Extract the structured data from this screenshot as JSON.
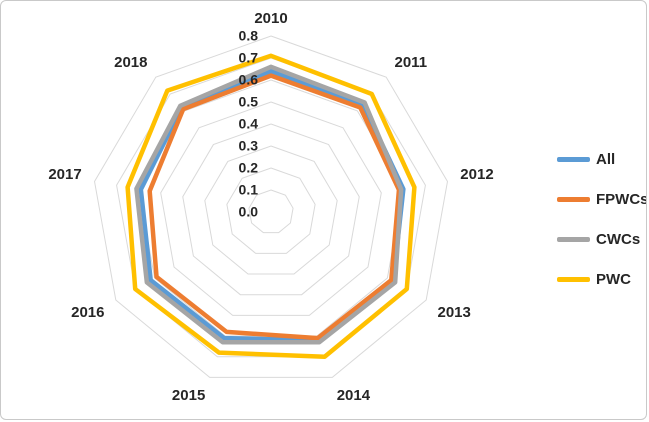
{
  "frame": {
    "background": "#FFFFFF",
    "border_color": "#C9C9C9",
    "gridline_color": "#D9D9D9",
    "text_color": "#262626"
  },
  "chart_data": {
    "type": "radar",
    "title": "",
    "categories": [
      "2010",
      "2011",
      "2012",
      "2013",
      "2014",
      "2015",
      "2016",
      "2017",
      "2018"
    ],
    "series": [
      {
        "name": "All",
        "color": "#5B9BD5",
        "values": [
          0.64,
          0.64,
          0.6,
          0.63,
          0.62,
          0.61,
          0.62,
          0.59,
          0.62
        ]
      },
      {
        "name": "FPWCs",
        "color": "#ED7D31",
        "values": [
          0.62,
          0.62,
          0.58,
          0.62,
          0.61,
          0.58,
          0.59,
          0.55,
          0.61
        ]
      },
      {
        "name": "CWCs",
        "color": "#A5A5A5",
        "values": [
          0.66,
          0.65,
          0.59,
          0.64,
          0.63,
          0.63,
          0.64,
          0.61,
          0.63
        ]
      },
      {
        "name": "PWC",
        "color": "#FFC000",
        "values": [
          0.71,
          0.7,
          0.65,
          0.7,
          0.7,
          0.68,
          0.7,
          0.65,
          0.72
        ]
      }
    ],
    "axis": {
      "min": 0.0,
      "max": 0.8,
      "step": 0.1,
      "tick_labels": [
        "0.0",
        "0.1",
        "0.2",
        "0.3",
        "0.4",
        "0.5",
        "0.6",
        "0.7",
        "0.8"
      ]
    },
    "grid": "concentric-rings",
    "spokes": false,
    "legend_position": "right",
    "line_width": 4.5
  },
  "legend": {
    "items": [
      {
        "label": "All"
      },
      {
        "label": "FPWCs"
      },
      {
        "label": "CWCs"
      },
      {
        "label": "PWC"
      }
    ]
  }
}
